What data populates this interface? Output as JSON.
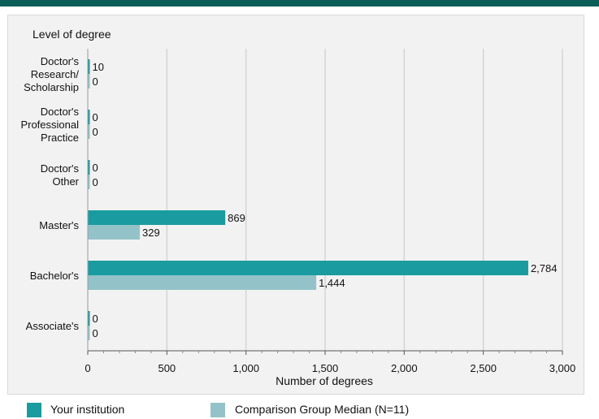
{
  "chart_data": {
    "type": "bar",
    "orientation": "horizontal",
    "title": "Level of degree",
    "xlabel": "Number of degrees",
    "categories": [
      [
        "Doctor's",
        "Research/",
        "Scholarship"
      ],
      [
        "Doctor's",
        "Professional",
        "Practice"
      ],
      [
        "Doctor's",
        "Other"
      ],
      [
        "Master's"
      ],
      [
        "Bachelor's"
      ],
      [
        "Associate's"
      ]
    ],
    "series": [
      {
        "name": "Your institution",
        "color": "#1a9ba0",
        "values": [
          10,
          0,
          0,
          869,
          2784,
          0
        ],
        "labels": [
          "10",
          "0",
          "0",
          "869",
          "2,784",
          "0"
        ]
      },
      {
        "name": "Comparison Group Median (N=11)",
        "color": "#93c3c8",
        "values": [
          0,
          0,
          0,
          329,
          1444,
          0
        ],
        "labels": [
          "0",
          "0",
          "0",
          "329",
          "1,444",
          "0"
        ]
      }
    ],
    "xlim": [
      0,
      3000
    ],
    "xticks": [
      0,
      500,
      1000,
      1500,
      2000,
      2500,
      3000
    ],
    "xtick_labels": [
      "0",
      "500",
      "1,000",
      "1,500",
      "2,000",
      "2,500",
      "3,000"
    ],
    "grid": true,
    "legend_position": "bottom"
  }
}
